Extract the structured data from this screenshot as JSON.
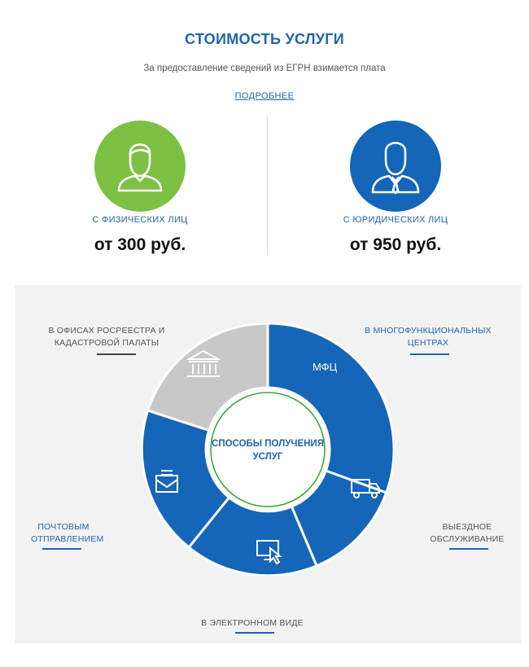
{
  "header": {
    "title": "СТОИМОСТЬ УСЛУГИ",
    "subtitle": "За предоставление сведений из ЕГРН взимается плата",
    "more_link": "ПОДРОБНЕЕ"
  },
  "pricing": {
    "individuals": {
      "label": "С ФИЗИЧЕСКИХ ЛИЦ",
      "price": "от 300 руб.",
      "color": "#7cc143",
      "icon": "person-icon"
    },
    "legal": {
      "label": "С ЮРИДИЧЕСКИХ ЛИЦ",
      "price": "от 950 руб.",
      "color": "#1565b8",
      "icon": "businessman-icon"
    }
  },
  "methods": {
    "center_line1": "СПОСОБЫ ПОЛУЧЕНИЯ",
    "center_line2": "УСЛУГ",
    "mfc_badge": "МФЦ",
    "offices": {
      "line1": "В ОФИСАХ РОСРЕЕСТРА И",
      "line2": "КАДАСТРОВОЙ ПАЛАТЫ",
      "icon": "bank-building-icon"
    },
    "mfc": {
      "line1": "В МНОГОФУНКЦИОНАЛЬНЫХ",
      "line2": "ЦЕНТРАХ"
    },
    "visit": {
      "line1": "ВЫЕЗДНОЕ",
      "line2": "ОБСЛУЖИВАНИЕ",
      "icon": "delivery-truck-icon"
    },
    "electronic": {
      "line1": "В ЭЛЕКТРОННОМ ВИДЕ",
      "icon": "computer-cursor-icon"
    },
    "mail": {
      "line1": "ПОЧТОВЫМ",
      "line2": "ОТПРАВЛЕНИЕМ",
      "icon": "mail-envelope-icon"
    }
  },
  "colors": {
    "accent": "#1e64b4",
    "wheel_blue": "#1565b8",
    "wheel_gray": "#c8c8c8",
    "center_ring": "#3aaa35"
  }
}
